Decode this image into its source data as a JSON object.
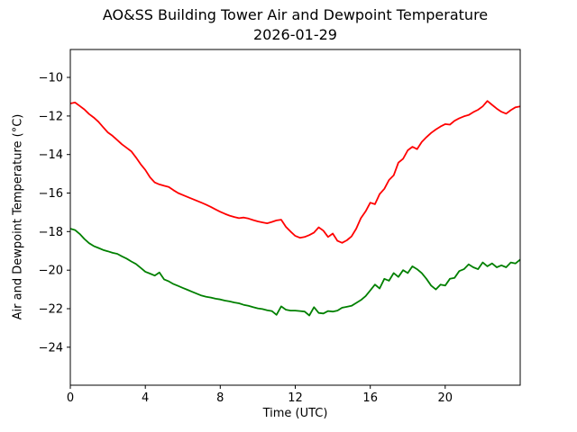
{
  "title": {
    "line1": "AO&SS Building Tower Air and Dewpoint Temperature",
    "line2": "2026-01-29"
  },
  "colors": {
    "background": "#ffffff",
    "axis": "#000000",
    "air_line": "#ff0000",
    "dewpoint_line": "#008000"
  },
  "chart_data": {
    "type": "line",
    "title": "AO&SS Building Tower Air and Dewpoint Temperature 2026-01-29",
    "xlabel": "Time (UTC)",
    "ylabel": "Air and Dewpoint Temperature (°C)",
    "xlim": [
      0,
      24
    ],
    "ylim": [
      -25.97,
      -8.55
    ],
    "xticks": [
      0,
      4,
      8,
      12,
      16,
      20
    ],
    "yticks": [
      -10,
      -12,
      -14,
      -16,
      -18,
      -20,
      -22,
      -24
    ],
    "grid": false,
    "legend_position": "none",
    "x_start": 0,
    "x_step": 0.25,
    "series": [
      {
        "name": "Air Temperature",
        "color": "#ff0000",
        "values": [
          -11.35,
          -11.3,
          -11.48,
          -11.66,
          -11.9,
          -12.08,
          -12.3,
          -12.58,
          -12.85,
          -13.03,
          -13.25,
          -13.47,
          -13.65,
          -13.83,
          -14.15,
          -14.5,
          -14.8,
          -15.18,
          -15.45,
          -15.55,
          -15.62,
          -15.68,
          -15.85,
          -16.0,
          -16.1,
          -16.2,
          -16.3,
          -16.4,
          -16.5,
          -16.6,
          -16.72,
          -16.85,
          -16.97,
          -17.08,
          -17.17,
          -17.24,
          -17.3,
          -17.27,
          -17.32,
          -17.4,
          -17.47,
          -17.52,
          -17.57,
          -17.5,
          -17.42,
          -17.38,
          -17.75,
          -18.0,
          -18.22,
          -18.32,
          -18.28,
          -18.18,
          -18.05,
          -17.78,
          -17.95,
          -18.28,
          -18.1,
          -18.48,
          -18.58,
          -18.45,
          -18.25,
          -17.85,
          -17.3,
          -16.95,
          -16.5,
          -16.58,
          -16.05,
          -15.78,
          -15.32,
          -15.08,
          -14.42,
          -14.22,
          -13.78,
          -13.6,
          -13.72,
          -13.35,
          -13.1,
          -12.88,
          -12.7,
          -12.55,
          -12.42,
          -12.45,
          -12.25,
          -12.12,
          -12.02,
          -11.95,
          -11.8,
          -11.68,
          -11.5,
          -11.22,
          -11.42,
          -11.62,
          -11.78,
          -11.88,
          -11.7,
          -11.55,
          -11.5
        ]
      },
      {
        "name": "Dewpoint Temperature",
        "color": "#008000",
        "values": [
          -17.85,
          -17.92,
          -18.12,
          -18.38,
          -18.6,
          -18.75,
          -18.85,
          -18.95,
          -19.02,
          -19.1,
          -19.15,
          -19.28,
          -19.4,
          -19.55,
          -19.68,
          -19.88,
          -20.08,
          -20.18,
          -20.28,
          -20.12,
          -20.48,
          -20.58,
          -20.72,
          -20.82,
          -20.92,
          -21.02,
          -21.12,
          -21.22,
          -21.32,
          -21.38,
          -21.42,
          -21.48,
          -21.52,
          -21.58,
          -21.62,
          -21.68,
          -21.72,
          -21.8,
          -21.85,
          -21.92,
          -21.98,
          -22.02,
          -22.08,
          -22.12,
          -22.32,
          -21.88,
          -22.05,
          -22.1,
          -22.1,
          -22.12,
          -22.15,
          -22.35,
          -21.92,
          -22.22,
          -22.25,
          -22.12,
          -22.15,
          -22.1,
          -21.95,
          -21.9,
          -21.85,
          -21.7,
          -21.55,
          -21.35,
          -21.05,
          -20.75,
          -20.95,
          -20.45,
          -20.55,
          -20.15,
          -20.35,
          -20.0,
          -20.15,
          -19.8,
          -19.95,
          -20.15,
          -20.45,
          -20.8,
          -21.0,
          -20.75,
          -20.8,
          -20.45,
          -20.4,
          -20.05,
          -19.95,
          -19.7,
          -19.85,
          -19.95,
          -19.6,
          -19.8,
          -19.65,
          -19.85,
          -19.75,
          -19.85,
          -19.6,
          -19.65,
          -19.45
        ]
      }
    ]
  }
}
